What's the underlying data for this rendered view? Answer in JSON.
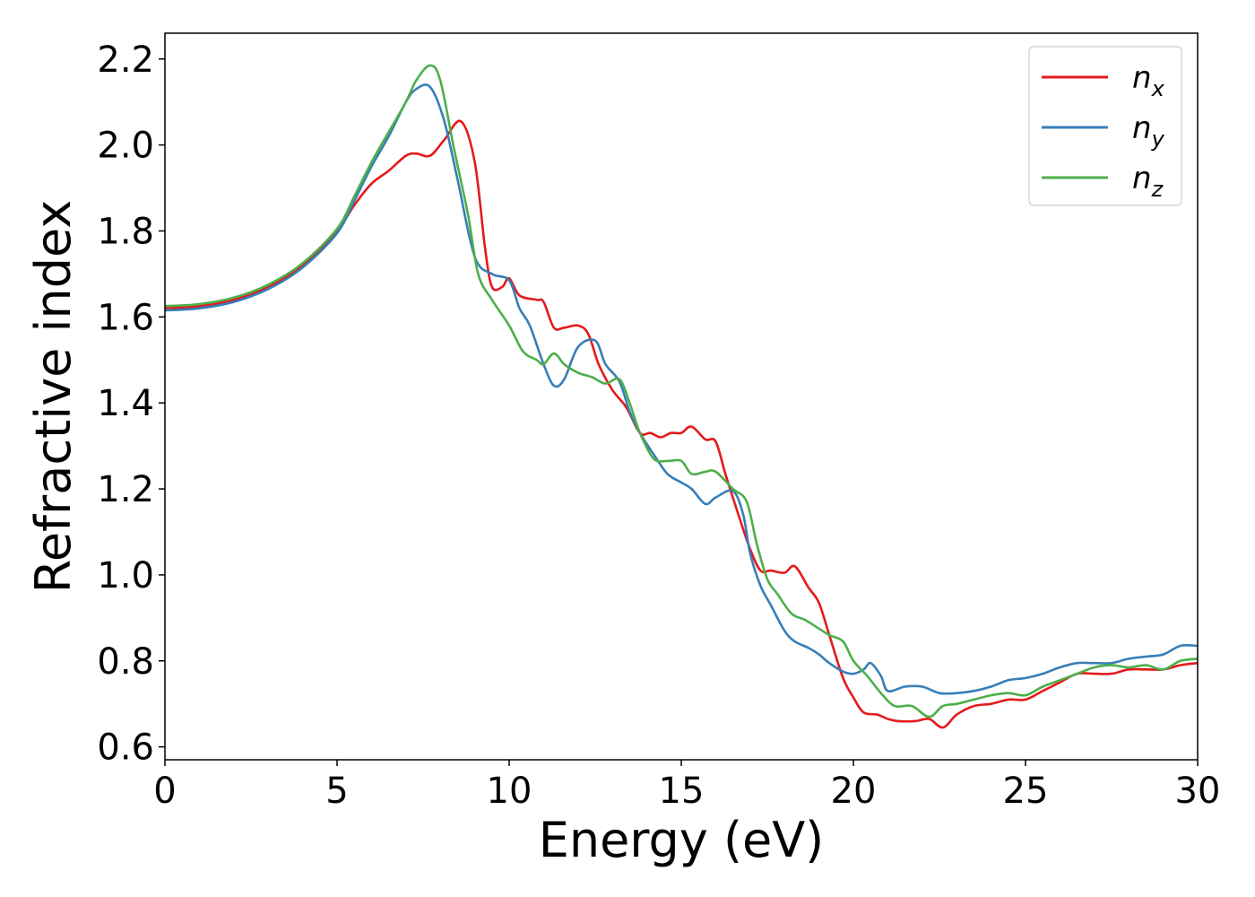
{
  "chart_data": {
    "type": "line",
    "xlabel": "Energy (eV)",
    "ylabel": "Refractive index",
    "xlim": [
      0,
      30
    ],
    "ylim": [
      0.57,
      2.26
    ],
    "x_ticks": [
      0,
      5,
      10,
      15,
      20,
      25,
      30
    ],
    "x_tick_labels": [
      "0",
      "5",
      "10",
      "15",
      "20",
      "25",
      "30"
    ],
    "y_ticks": [
      0.6,
      0.8,
      1.0,
      1.2,
      1.4,
      1.6,
      1.8,
      2.0,
      2.2
    ],
    "y_tick_labels": [
      "0.6",
      "0.8",
      "1.0",
      "1.2",
      "1.4",
      "1.6",
      "1.8",
      "2.0",
      "2.2"
    ],
    "grid": false,
    "legend_position": "top-right",
    "series": [
      {
        "name": "n_x",
        "label_base": "n",
        "label_sub": "x",
        "color": "#e41a1c",
        "points": [
          [
            0,
            1.62
          ],
          [
            1,
            1.625
          ],
          [
            2,
            1.64
          ],
          [
            3,
            1.67
          ],
          [
            4,
            1.72
          ],
          [
            5,
            1.8
          ],
          [
            5.5,
            1.86
          ],
          [
            6,
            1.91
          ],
          [
            6.5,
            1.94
          ],
          [
            7,
            1.975
          ],
          [
            7.3,
            1.98
          ],
          [
            7.7,
            1.975
          ],
          [
            8.1,
            2.01
          ],
          [
            8.6,
            2.055
          ],
          [
            9.0,
            1.96
          ],
          [
            9.3,
            1.76
          ],
          [
            9.5,
            1.67
          ],
          [
            9.8,
            1.67
          ],
          [
            10.0,
            1.69
          ],
          [
            10.3,
            1.65
          ],
          [
            10.8,
            1.64
          ],
          [
            11.0,
            1.635
          ],
          [
            11.3,
            1.575
          ],
          [
            11.6,
            1.575
          ],
          [
            12.0,
            1.58
          ],
          [
            12.3,
            1.56
          ],
          [
            12.6,
            1.49
          ],
          [
            13.0,
            1.43
          ],
          [
            13.4,
            1.39
          ],
          [
            13.8,
            1.33
          ],
          [
            14.1,
            1.33
          ],
          [
            14.4,
            1.32
          ],
          [
            14.7,
            1.33
          ],
          [
            15.0,
            1.33
          ],
          [
            15.3,
            1.345
          ],
          [
            15.7,
            1.315
          ],
          [
            16.0,
            1.31
          ],
          [
            16.3,
            1.23
          ],
          [
            16.7,
            1.13
          ],
          [
            17.0,
            1.06
          ],
          [
            17.3,
            1.01
          ],
          [
            17.6,
            1.01
          ],
          [
            18.0,
            1.005
          ],
          [
            18.3,
            1.02
          ],
          [
            18.7,
            0.97
          ],
          [
            19.0,
            0.935
          ],
          [
            19.3,
            0.86
          ],
          [
            19.7,
            0.76
          ],
          [
            20.0,
            0.715
          ],
          [
            20.3,
            0.68
          ],
          [
            20.7,
            0.675
          ],
          [
            21.0,
            0.665
          ],
          [
            21.3,
            0.66
          ],
          [
            21.8,
            0.66
          ],
          [
            22.2,
            0.665
          ],
          [
            22.6,
            0.645
          ],
          [
            23.0,
            0.675
          ],
          [
            23.5,
            0.695
          ],
          [
            24.0,
            0.7
          ],
          [
            24.5,
            0.71
          ],
          [
            25.0,
            0.71
          ],
          [
            25.5,
            0.73
          ],
          [
            26.0,
            0.75
          ],
          [
            26.5,
            0.77
          ],
          [
            27.0,
            0.77
          ],
          [
            27.5,
            0.77
          ],
          [
            28.0,
            0.78
          ],
          [
            28.5,
            0.78
          ],
          [
            29.0,
            0.78
          ],
          [
            29.5,
            0.79
          ],
          [
            30.0,
            0.795
          ]
        ]
      },
      {
        "name": "n_y",
        "label_base": "n",
        "label_sub": "y",
        "color": "#377eb8",
        "points": [
          [
            0,
            1.615
          ],
          [
            1,
            1.62
          ],
          [
            2,
            1.635
          ],
          [
            3,
            1.665
          ],
          [
            4,
            1.715
          ],
          [
            5,
            1.795
          ],
          [
            5.5,
            1.87
          ],
          [
            6,
            1.95
          ],
          [
            6.5,
            2.02
          ],
          [
            7,
            2.1
          ],
          [
            7.3,
            2.13
          ],
          [
            7.7,
            2.135
          ],
          [
            8.1,
            2.06
          ],
          [
            8.5,
            1.92
          ],
          [
            9.0,
            1.74
          ],
          [
            9.5,
            1.7
          ],
          [
            10.0,
            1.685
          ],
          [
            10.3,
            1.62
          ],
          [
            10.6,
            1.58
          ],
          [
            11.0,
            1.49
          ],
          [
            11.3,
            1.44
          ],
          [
            11.6,
            1.455
          ],
          [
            12.0,
            1.53
          ],
          [
            12.5,
            1.545
          ],
          [
            12.8,
            1.49
          ],
          [
            13.2,
            1.45
          ],
          [
            13.5,
            1.38
          ],
          [
            13.8,
            1.33
          ],
          [
            14.2,
            1.28
          ],
          [
            14.6,
            1.235
          ],
          [
            15.0,
            1.215
          ],
          [
            15.3,
            1.2
          ],
          [
            15.7,
            1.165
          ],
          [
            16.0,
            1.18
          ],
          [
            16.5,
            1.195
          ],
          [
            16.8,
            1.14
          ],
          [
            17.0,
            1.05
          ],
          [
            17.3,
            0.975
          ],
          [
            17.6,
            0.93
          ],
          [
            18.0,
            0.87
          ],
          [
            18.3,
            0.845
          ],
          [
            18.7,
            0.83
          ],
          [
            19.0,
            0.815
          ],
          [
            19.3,
            0.795
          ],
          [
            19.7,
            0.775
          ],
          [
            20.0,
            0.77
          ],
          [
            20.3,
            0.78
          ],
          [
            20.5,
            0.795
          ],
          [
            20.8,
            0.765
          ],
          [
            21.0,
            0.73
          ],
          [
            21.5,
            0.74
          ],
          [
            22.0,
            0.74
          ],
          [
            22.5,
            0.725
          ],
          [
            23.0,
            0.725
          ],
          [
            23.5,
            0.73
          ],
          [
            24.0,
            0.74
          ],
          [
            24.5,
            0.755
          ],
          [
            25.0,
            0.76
          ],
          [
            25.5,
            0.77
          ],
          [
            26.0,
            0.785
          ],
          [
            26.5,
            0.795
          ],
          [
            27.0,
            0.795
          ],
          [
            27.5,
            0.795
          ],
          [
            28.0,
            0.805
          ],
          [
            28.5,
            0.81
          ],
          [
            29.0,
            0.815
          ],
          [
            29.5,
            0.835
          ],
          [
            30.0,
            0.835
          ]
        ]
      },
      {
        "name": "n_z",
        "label_base": "n",
        "label_sub": "z",
        "color": "#4daf4a",
        "points": [
          [
            0,
            1.625
          ],
          [
            1,
            1.63
          ],
          [
            2,
            1.645
          ],
          [
            3,
            1.675
          ],
          [
            4,
            1.725
          ],
          [
            5,
            1.805
          ],
          [
            5.5,
            1.88
          ],
          [
            6,
            1.96
          ],
          [
            6.5,
            2.03
          ],
          [
            7,
            2.1
          ],
          [
            7.3,
            2.15
          ],
          [
            7.7,
            2.185
          ],
          [
            8.0,
            2.15
          ],
          [
            8.4,
            1.99
          ],
          [
            8.8,
            1.84
          ],
          [
            9.1,
            1.7
          ],
          [
            9.5,
            1.64
          ],
          [
            10.0,
            1.58
          ],
          [
            10.4,
            1.52
          ],
          [
            10.8,
            1.5
          ],
          [
            11.0,
            1.49
          ],
          [
            11.3,
            1.515
          ],
          [
            11.6,
            1.49
          ],
          [
            12.0,
            1.47
          ],
          [
            12.4,
            1.46
          ],
          [
            12.8,
            1.445
          ],
          [
            13.2,
            1.455
          ],
          [
            13.5,
            1.4
          ],
          [
            13.8,
            1.33
          ],
          [
            14.2,
            1.27
          ],
          [
            14.6,
            1.265
          ],
          [
            15.0,
            1.265
          ],
          [
            15.3,
            1.235
          ],
          [
            15.7,
            1.24
          ],
          [
            16.0,
            1.24
          ],
          [
            16.5,
            1.2
          ],
          [
            16.9,
            1.17
          ],
          [
            17.2,
            1.07
          ],
          [
            17.5,
            0.99
          ],
          [
            17.8,
            0.955
          ],
          [
            18.2,
            0.91
          ],
          [
            18.6,
            0.895
          ],
          [
            19.0,
            0.875
          ],
          [
            19.3,
            0.86
          ],
          [
            19.7,
            0.845
          ],
          [
            20.0,
            0.8
          ],
          [
            20.4,
            0.765
          ],
          [
            20.8,
            0.725
          ],
          [
            21.2,
            0.695
          ],
          [
            21.7,
            0.695
          ],
          [
            22.2,
            0.67
          ],
          [
            22.6,
            0.695
          ],
          [
            23.0,
            0.7
          ],
          [
            23.5,
            0.71
          ],
          [
            24.0,
            0.72
          ],
          [
            24.5,
            0.725
          ],
          [
            25.0,
            0.72
          ],
          [
            25.5,
            0.74
          ],
          [
            26.0,
            0.755
          ],
          [
            26.5,
            0.77
          ],
          [
            27.0,
            0.785
          ],
          [
            27.5,
            0.79
          ],
          [
            28.0,
            0.785
          ],
          [
            28.5,
            0.79
          ],
          [
            29.0,
            0.78
          ],
          [
            29.5,
            0.8
          ],
          [
            30.0,
            0.805
          ]
        ]
      }
    ]
  }
}
